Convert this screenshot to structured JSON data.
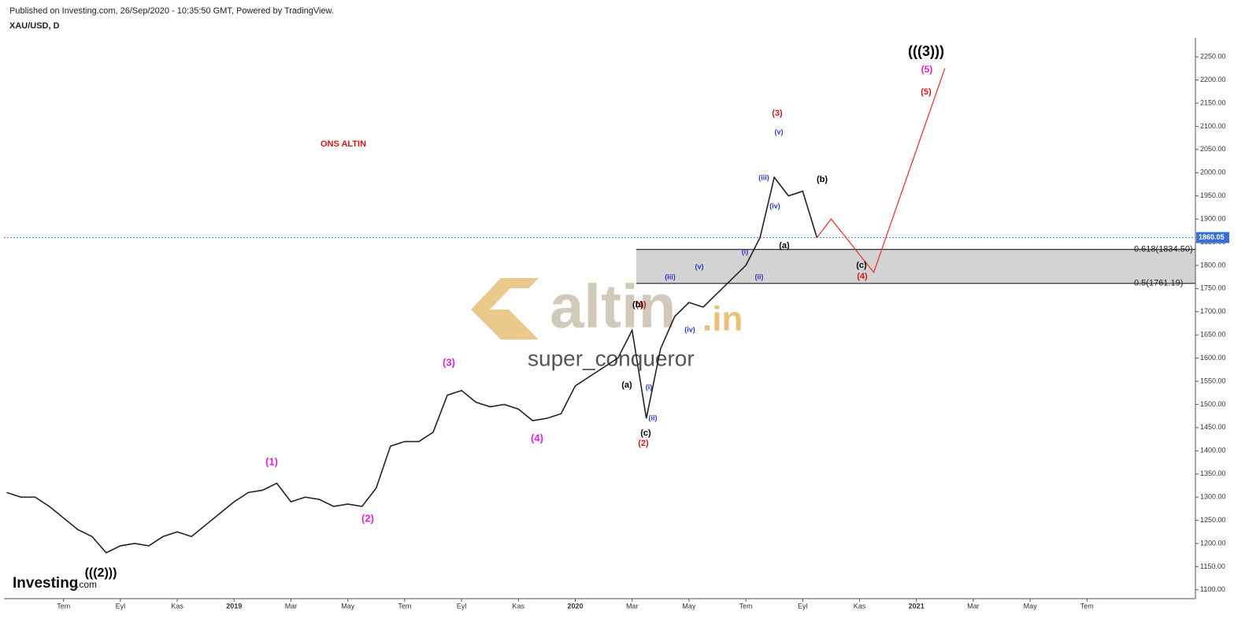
{
  "header": {
    "published": "Published on Investing.com, 26/Sep/2020 - 10:35:50 GMT, Powered by TradingView.",
    "symbol": "XAU/USD, D"
  },
  "watermark": {
    "brand": "altin",
    "suffix": ".in",
    "user": "super_conqueror"
  },
  "logo": {
    "name": "Investing",
    "suffix": ".com"
  },
  "chart_data": {
    "type": "line",
    "title": "ONS ALTIN",
    "categories": [
      null,
      null,
      null,
      null,
      "Tem",
      null,
      null,
      null,
      "Eyl",
      null,
      null,
      null,
      "Kas",
      null,
      null,
      null,
      "2019",
      null,
      null,
      null,
      "Mar",
      null,
      null,
      null,
      "May",
      null,
      null,
      null,
      "Tem",
      null,
      null,
      null,
      "Eyl",
      null,
      null,
      null,
      "Kas",
      null,
      null,
      null,
      "2020",
      null,
      null,
      null,
      "Mar",
      null,
      null,
      null,
      "May",
      null,
      null,
      null,
      "Tem",
      null,
      null,
      null,
      "Eyl",
      null,
      null,
      null,
      "Kas",
      null,
      null,
      null,
      "2021",
      null,
      null,
      null,
      "Mar",
      null,
      null,
      null,
      "May",
      null,
      null,
      null,
      "Tem",
      null,
      null,
      null,
      null,
      null,
      null,
      null
    ],
    "series": [
      {
        "color": "#222222",
        "values": [
          1310,
          1300,
          1300,
          1280,
          1255,
          1230,
          1215,
          1180,
          1195,
          1200,
          1195,
          1215,
          1225,
          1215,
          1240,
          1265,
          1290,
          1310,
          1315,
          1330,
          1290,
          1300,
          1295,
          1280,
          1285,
          1280,
          1320,
          1410,
          1420,
          1420,
          1440,
          1520,
          1530,
          1505,
          1495,
          1500,
          1490,
          1465,
          1470,
          1480,
          1540,
          1560,
          1580,
          1600,
          1660,
          1470,
          1620,
          1690,
          1720,
          1710,
          1740,
          1770,
          1800,
          1860,
          1990,
          1950,
          1960,
          1860,
          null,
          null,
          null,
          null,
          null,
          null,
          null,
          null,
          null,
          null,
          null,
          null,
          null,
          null,
          null,
          null,
          null,
          null,
          null,
          null,
          null,
          null,
          null,
          null,
          null,
          null
        ]
      },
      {
        "color": "#e53935",
        "values": [
          null,
          null,
          null,
          null,
          null,
          null,
          null,
          null,
          null,
          null,
          null,
          null,
          null,
          null,
          null,
          null,
          null,
          null,
          null,
          null,
          null,
          null,
          null,
          null,
          null,
          null,
          null,
          null,
          null,
          null,
          null,
          null,
          null,
          null,
          null,
          null,
          null,
          null,
          null,
          null,
          null,
          null,
          null,
          null,
          null,
          null,
          null,
          null,
          null,
          null,
          null,
          null,
          null,
          null,
          null,
          null,
          null,
          1860,
          1900,
          1862,
          1823,
          1785,
          1873,
          1961,
          2049,
          2137,
          2225,
          null,
          null,
          null,
          null,
          null,
          null,
          null,
          null,
          null,
          null,
          null,
          null,
          null,
          null,
          null,
          null,
          null
        ]
      }
    ],
    "ylim": [
      1081,
      2291
    ],
    "yticks": [
      {
        "value": 1100,
        "label": "1100.00"
      },
      {
        "value": 1150,
        "label": "1150.00"
      },
      {
        "value": 1200,
        "label": "1200.00"
      },
      {
        "value": 1250,
        "label": "1250.00"
      },
      {
        "value": 1300,
        "label": "1300.00"
      },
      {
        "value": 1350,
        "label": "1350.00"
      },
      {
        "value": 1400,
        "label": "1400.00"
      },
      {
        "value": 1450,
        "label": "1450.00"
      },
      {
        "value": 1500,
        "label": "1500.00"
      },
      {
        "value": 1550,
        "label": "1550.00"
      },
      {
        "value": 1600,
        "label": "1600.00"
      },
      {
        "value": 1650,
        "label": "1650.00"
      },
      {
        "value": 1700,
        "label": "1700.00"
      },
      {
        "value": 1750,
        "label": "1750.00"
      },
      {
        "value": 1800,
        "label": "1800.00"
      },
      {
        "value": 1850,
        "label": "1850.00"
      },
      {
        "value": 1900,
        "label": "1900.00"
      },
      {
        "value": 1950,
        "label": "1950.00"
      },
      {
        "value": 2000,
        "label": "2000.00"
      },
      {
        "value": 2050,
        "label": "2050.00"
      },
      {
        "value": 2100,
        "label": "2100.00"
      },
      {
        "value": 2150,
        "label": "2150.00"
      },
      {
        "value": 2200,
        "label": "2200.00"
      },
      {
        "value": 2250,
        "label": "2250.00"
      }
    ],
    "current_price": {
      "value": 1860.05,
      "label": "1860.05",
      "color": "#3b6fd8"
    },
    "fib_zone": [
      {
        "value": 1834.5,
        "label": "0.618(1834.50)"
      },
      {
        "value": 1761.19,
        "label": "0.5(1761.19)"
      }
    ],
    "annotations": [
      {
        "text": "(((2)))",
        "color": "#000000"
      },
      {
        "text": "(1)",
        "color": "#e020d8"
      },
      {
        "text": "(2)",
        "color": "#e020d8"
      },
      {
        "text": "(3)",
        "color": "#e020d8"
      },
      {
        "text": "(4)",
        "color": "#e020d8"
      },
      {
        "text": "(5)",
        "color": "#e020d8"
      },
      {
        "text": "(1)",
        "color": "#d01818"
      },
      {
        "text": "(2)",
        "color": "#d01818"
      },
      {
        "text": "(3)",
        "color": "#d01818"
      },
      {
        "text": "(4)",
        "color": "#d01818"
      },
      {
        "text": "(5)",
        "color": "#d01818"
      },
      {
        "text": "(b)",
        "color": "#000000"
      },
      {
        "text": "(a)",
        "color": "#000000"
      },
      {
        "text": "(c)",
        "color": "#000000"
      },
      {
        "text": "(a)",
        "color": "#000000"
      },
      {
        "text": "(b)",
        "color": "#000000"
      },
      {
        "text": "(c)",
        "color": "#000000"
      },
      {
        "text": "(((3)))",
        "color": "#000000"
      },
      {
        "text": "(iii)",
        "color": "#2a36c8"
      },
      {
        "text": "(v)",
        "color": "#2a36c8"
      },
      {
        "text": "(iv)",
        "color": "#2a36c8"
      },
      {
        "text": "(i)",
        "color": "#2a36c8"
      },
      {
        "text": "(ii)",
        "color": "#2a36c8"
      },
      {
        "text": "(i)",
        "color": "#2a36c8"
      },
      {
        "text": "(ii)",
        "color": "#2a36c8"
      },
      {
        "text": "(iii)",
        "color": "#2a36c8"
      },
      {
        "text": "(iv)",
        "color": "#2a36c8"
      },
      {
        "text": "(v)",
        "color": "#2a36c8"
      }
    ]
  }
}
